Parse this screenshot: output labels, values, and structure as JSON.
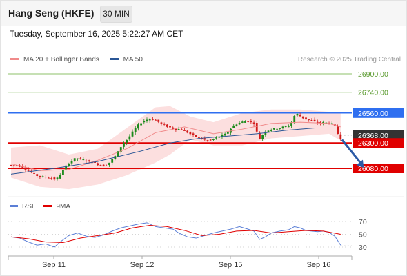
{
  "header": {
    "title": "Hang Seng (HKFE)",
    "timeframe": "30 MIN"
  },
  "datetime": "Tuesday, September 16, 2025 5:22:27 AM CET",
  "legend": {
    "items": [
      {
        "label": "MA 20 + Bollinger Bands",
        "color": "#f08a8a"
      },
      {
        "label": "MA 50",
        "color": "#2a5696"
      }
    ],
    "research": "Research © 2025 Trading Central"
  },
  "rsi_legend": {
    "items": [
      {
        "label": "RSI",
        "color": "#5b7fd6"
      },
      {
        "label": "9MA",
        "color": "#e00000"
      }
    ]
  },
  "colors": {
    "up": "#1a8a1a",
    "down": "#d11a1a",
    "support": "#e00000",
    "pivot": "#2f6ff0",
    "resistance": "#8cc06a",
    "current": "#333333",
    "band": "#fbd9d9",
    "ma20": "#f08a8a",
    "ma50": "#2a5696"
  },
  "chart_data": [
    {
      "type": "candlestick",
      "ylim": [
        25860,
        27000
      ],
      "x_ticks": [
        "Sep 11",
        "Sep 12",
        "Sep 15",
        "Sep 16"
      ],
      "levels": [
        {
          "value": 26900,
          "label": "26900.00",
          "kind": "resistance"
        },
        {
          "value": 26740,
          "label": "26740.00",
          "kind": "resistance"
        },
        {
          "value": 26560,
          "label": "26560.00",
          "kind": "pivot"
        },
        {
          "value": 26368,
          "label": "26368.00",
          "kind": "current"
        },
        {
          "value": 26300,
          "label": "26300.00",
          "kind": "support"
        },
        {
          "value": 26080,
          "label": "26080.00",
          "kind": "support"
        }
      ],
      "price_path": [
        [
          0,
          26110
        ],
        [
          4,
          26100
        ],
        [
          7,
          26050
        ],
        [
          10,
          26010
        ],
        [
          14,
          26000
        ],
        [
          16,
          25980
        ],
        [
          18,
          26040
        ],
        [
          20,
          26120
        ],
        [
          23,
          26170
        ],
        [
          26,
          26150
        ],
        [
          29,
          26130
        ],
        [
          31,
          26110
        ],
        [
          33,
          26100
        ],
        [
          35,
          26140
        ],
        [
          37,
          26200
        ],
        [
          39,
          26290
        ],
        [
          41,
          26340
        ],
        [
          43,
          26410
        ],
        [
          45,
          26470
        ],
        [
          47,
          26500
        ],
        [
          49,
          26510
        ],
        [
          51,
          26490
        ],
        [
          53,
          26460
        ],
        [
          55,
          26440
        ],
        [
          57,
          26420
        ],
        [
          59,
          26420
        ],
        [
          61,
          26400
        ],
        [
          63,
          26370
        ],
        [
          65,
          26350
        ],
        [
          67,
          26330
        ],
        [
          69,
          26320
        ],
        [
          71,
          26340
        ],
        [
          73,
          26360
        ],
        [
          75,
          26380
        ],
        [
          77,
          26440
        ],
        [
          78,
          26460
        ],
        [
          80,
          26480
        ],
        [
          82,
          26490
        ],
        [
          84,
          26480
        ],
        [
          85,
          26460
        ],
        [
          86,
          26330
        ],
        [
          87,
          26340
        ],
        [
          88,
          26400
        ],
        [
          91,
          26420
        ],
        [
          93,
          26430
        ],
        [
          95,
          26440
        ],
        [
          97,
          26450
        ],
        [
          98,
          26510
        ],
        [
          99,
          26560
        ],
        [
          100,
          26540
        ],
        [
          102,
          26510
        ],
        [
          105,
          26490
        ],
        [
          107,
          26470
        ],
        [
          109,
          26480
        ],
        [
          110,
          26470
        ],
        [
          111,
          26470
        ],
        [
          112,
          26460
        ],
        [
          113,
          26420
        ],
        [
          114,
          26340
        ]
      ],
      "ma20": [
        [
          0,
          26120
        ],
        [
          10,
          26060
        ],
        [
          20,
          26070
        ],
        [
          30,
          26150
        ],
        [
          40,
          26250
        ],
        [
          50,
          26390
        ],
        [
          60,
          26440
        ],
        [
          70,
          26380
        ],
        [
          80,
          26420
        ],
        [
          90,
          26470
        ],
        [
          100,
          26480
        ],
        [
          110,
          26470
        ],
        [
          114,
          26440
        ]
      ],
      "ma50": [
        [
          0,
          26030
        ],
        [
          15,
          26080
        ],
        [
          30,
          26140
        ],
        [
          45,
          26230
        ],
        [
          55,
          26300
        ],
        [
          65,
          26340
        ],
        [
          75,
          26360
        ],
        [
          85,
          26380
        ],
        [
          95,
          26410
        ],
        [
          105,
          26430
        ],
        [
          114,
          26430
        ]
      ],
      "bands": [
        {
          "x": 0,
          "upper": 26260,
          "lower": 26000
        },
        {
          "x": 10,
          "upper": 26280,
          "lower": 25920
        },
        {
          "x": 20,
          "upper": 26200,
          "lower": 25900
        },
        {
          "x": 30,
          "upper": 26250,
          "lower": 25940
        },
        {
          "x": 40,
          "upper": 26430,
          "lower": 26020
        },
        {
          "x": 50,
          "upper": 26610,
          "lower": 26130
        },
        {
          "x": 55,
          "upper": 26620,
          "lower": 26200
        },
        {
          "x": 62,
          "upper": 26530,
          "lower": 26330
        },
        {
          "x": 70,
          "upper": 26480,
          "lower": 26280
        },
        {
          "x": 80,
          "upper": 26560,
          "lower": 26280
        },
        {
          "x": 90,
          "upper": 26590,
          "lower": 26340
        },
        {
          "x": 100,
          "upper": 26590,
          "lower": 26360
        },
        {
          "x": 110,
          "upper": 26570,
          "lower": 26380
        },
        {
          "x": 114,
          "upper": 26560,
          "lower": 26320
        }
      ],
      "projection": {
        "from": [
          114,
          26340
        ],
        "to": [
          122,
          26085
        ]
      }
    },
    {
      "type": "line",
      "ylim": [
        20,
        80
      ],
      "y_ticks": [
        70,
        50,
        30
      ],
      "series": [
        {
          "name": "RSI",
          "values": [
            [
              0,
              46
            ],
            [
              3,
              44
            ],
            [
              6,
              38
            ],
            [
              9,
              33
            ],
            [
              12,
              35
            ],
            [
              15,
              30
            ],
            [
              17,
              38
            ],
            [
              20,
              48
            ],
            [
              23,
              52
            ],
            [
              26,
              47
            ],
            [
              29,
              45
            ],
            [
              32,
              49
            ],
            [
              35,
              55
            ],
            [
              38,
              60
            ],
            [
              41,
              63
            ],
            [
              44,
              66
            ],
            [
              47,
              68
            ],
            [
              50,
              62
            ],
            [
              53,
              60
            ],
            [
              56,
              58
            ],
            [
              58,
              52
            ],
            [
              61,
              46
            ],
            [
              64,
              44
            ],
            [
              67,
              48
            ],
            [
              70,
              52
            ],
            [
              73,
              55
            ],
            [
              76,
              58
            ],
            [
              79,
              62
            ],
            [
              82,
              58
            ],
            [
              84,
              55
            ],
            [
              86,
              42
            ],
            [
              88,
              46
            ],
            [
              90,
              52
            ],
            [
              93,
              55
            ],
            [
              96,
              57
            ],
            [
              98,
              62
            ],
            [
              100,
              60
            ],
            [
              102,
              56
            ],
            [
              104,
              55
            ],
            [
              106,
              54
            ],
            [
              108,
              55
            ],
            [
              110,
              53
            ],
            [
              112,
              47
            ],
            [
              114,
              33
            ]
          ]
        },
        {
          "name": "9MA",
          "values": [
            [
              0,
              46
            ],
            [
              6,
              43
            ],
            [
              12,
              38
            ],
            [
              18,
              37
            ],
            [
              24,
              44
            ],
            [
              30,
              48
            ],
            [
              36,
              52
            ],
            [
              42,
              60
            ],
            [
              48,
              64
            ],
            [
              54,
              62
            ],
            [
              60,
              56
            ],
            [
              66,
              48
            ],
            [
              72,
              50
            ],
            [
              78,
              55
            ],
            [
              84,
              56
            ],
            [
              90,
              52
            ],
            [
              96,
              54
            ],
            [
              102,
              56
            ],
            [
              108,
              55
            ],
            [
              114,
              50
            ]
          ]
        }
      ]
    }
  ]
}
